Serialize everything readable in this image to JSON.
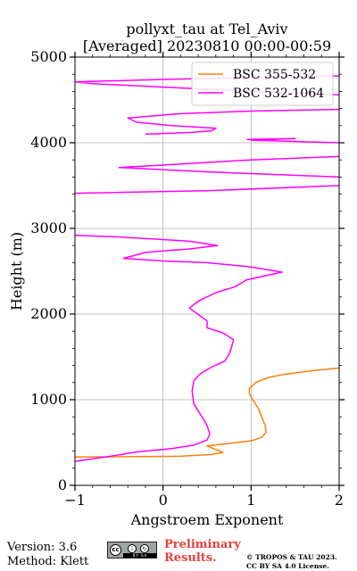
{
  "chart_data": {
    "type": "line",
    "title": "pollyxt_tau at Tel_Aviv",
    "subtitle": "[Averaged] 20230810 00:00-00:59",
    "xlabel": "Angstroem Exponent",
    "ylabel": "Height (m)",
    "xlim": [
      -1,
      2
    ],
    "ylim": [
      0,
      5000
    ],
    "xticks": [
      "−1",
      "0",
      "1",
      "2"
    ],
    "yticks": [
      "0",
      "1000",
      "2000",
      "3000",
      "4000",
      "5000"
    ],
    "grid": true,
    "legend_position": "top-right",
    "series": [
      {
        "name": "BSC 355-532",
        "color": "#ff7f0e",
        "points": [
          [
            -1.0,
            330
          ],
          [
            0.2,
            340
          ],
          [
            0.55,
            360
          ],
          [
            0.68,
            385
          ],
          [
            0.55,
            440
          ],
          [
            0.5,
            460
          ],
          [
            0.75,
            490
          ],
          [
            1.0,
            520
          ],
          [
            1.12,
            560
          ],
          [
            1.17,
            620
          ],
          [
            1.16,
            700
          ],
          [
            1.12,
            800
          ],
          [
            1.08,
            900
          ],
          [
            1.02,
            1000
          ],
          [
            0.98,
            1070
          ],
          [
            0.98,
            1130
          ],
          [
            1.05,
            1200
          ],
          [
            1.2,
            1260
          ],
          [
            1.4,
            1300
          ],
          [
            1.7,
            1340
          ],
          [
            2.0,
            1370
          ]
        ]
      },
      {
        "name": "BSC 532-1064",
        "color": "#ff00ff",
        "points": [
          [
            -1.0,
            280
          ],
          [
            -0.6,
            340
          ],
          [
            -0.3,
            390
          ],
          [
            0.1,
            430
          ],
          [
            0.35,
            470
          ],
          [
            0.5,
            530
          ],
          [
            0.53,
            600
          ],
          [
            0.5,
            700
          ],
          [
            0.43,
            820
          ],
          [
            0.35,
            950
          ],
          [
            0.33,
            1100
          ],
          [
            0.35,
            1220
          ],
          [
            0.42,
            1300
          ],
          [
            0.55,
            1380
          ],
          [
            0.7,
            1450
          ],
          [
            0.75,
            1530
          ],
          [
            0.78,
            1620
          ],
          [
            0.8,
            1700
          ],
          [
            0.68,
            1780
          ],
          [
            0.5,
            1840
          ],
          [
            0.5,
            1920
          ],
          [
            0.42,
            1980
          ],
          [
            0.3,
            2070
          ],
          [
            0.4,
            2150
          ],
          [
            0.6,
            2250
          ],
          [
            0.82,
            2320
          ],
          [
            0.95,
            2400
          ],
          [
            1.35,
            2490
          ],
          [
            1.0,
            2550
          ],
          [
            0.5,
            2600
          ],
          [
            0.0,
            2620
          ],
          [
            -0.45,
            2650
          ],
          [
            -0.2,
            2720
          ],
          [
            0.3,
            2760
          ],
          [
            0.62,
            2800
          ],
          [
            0.3,
            2850
          ],
          [
            0.0,
            2870
          ],
          [
            -0.5,
            2900
          ],
          [
            -1.0,
            2920
          ],
          [
            null,
            null
          ],
          [
            -1.0,
            3410
          ],
          [
            0.5,
            3440
          ],
          [
            2.0,
            3500
          ],
          [
            null,
            null
          ],
          [
            2.0,
            3600
          ],
          [
            0.5,
            3660
          ],
          [
            -0.5,
            3710
          ],
          [
            0.0,
            3740
          ],
          [
            1.0,
            3800
          ],
          [
            2.0,
            3840
          ],
          [
            null,
            null
          ],
          [
            2.0,
            4000
          ],
          [
            1.0,
            4030
          ],
          [
            1.5,
            4050
          ],
          [
            0.95,
            4040
          ],
          [
            null,
            null
          ],
          [
            -0.2,
            4100
          ],
          [
            0.3,
            4120
          ],
          [
            0.55,
            4140
          ],
          [
            0.6,
            4170
          ],
          [
            0.1,
            4200
          ],
          [
            -0.3,
            4240
          ],
          [
            -0.4,
            4290
          ],
          [
            0.2,
            4340
          ],
          [
            1.0,
            4370
          ],
          [
            2.0,
            4390
          ],
          [
            null,
            null
          ],
          [
            2.0,
            4560
          ],
          [
            1.0,
            4600
          ],
          [
            0.0,
            4650
          ],
          [
            -0.8,
            4690
          ],
          [
            -1.0,
            4710
          ],
          [
            0.0,
            4740
          ],
          [
            1.0,
            4760
          ],
          [
            2.0,
            4780
          ]
        ]
      }
    ]
  },
  "footer": {
    "version_line": "Version: 3.6",
    "method_line": "Method: Klett",
    "preliminary_line1": "Preliminary",
    "preliminary_line2": "Results.",
    "copyright_line1": "© TROPOS & TAU 2023.",
    "copyright_line2": "CC BY SA 4.0 License.",
    "license_badge": "cc by sa"
  }
}
